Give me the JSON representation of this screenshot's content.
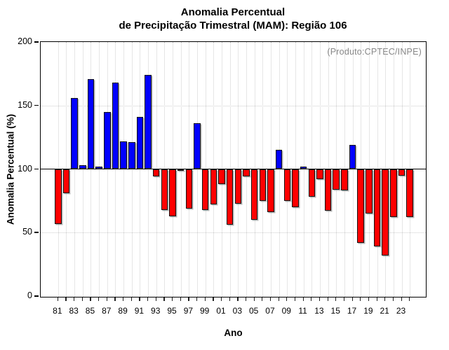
{
  "title": {
    "line1": "Anomalia Percentual",
    "line2": "de Precipitação Trimestral (MAM): Região 106"
  },
  "annotation": {
    "produto": "(Produto:CPTEC/INPE)",
    "color": "#878787"
  },
  "axes": {
    "ylabel": "Anomalia Percentual (%)",
    "xlabel": "Ano",
    "y_ticks": [
      0,
      50,
      100,
      150,
      200
    ],
    "y_gridlines": [
      50,
      150
    ],
    "x_label_every": 2
  },
  "colors": {
    "above_baseline": "#0000ff",
    "below_baseline": "#ff0000",
    "bar_outline": "#141414",
    "grid": "#cdcdcd"
  },
  "chart_data": {
    "type": "bar",
    "title": "Anomalia Percentual de Precipitação Trimestral (MAM): Região 106",
    "xlabel": "Ano",
    "ylabel": "Anomalia Percentual (%)",
    "ylim": [
      0,
      200
    ],
    "baseline": 100,
    "grid": "dotted",
    "categories": [
      "81",
      "82",
      "83",
      "84",
      "85",
      "86",
      "87",
      "88",
      "89",
      "90",
      "91",
      "92",
      "93",
      "94",
      "95",
      "96",
      "97",
      "98",
      "99",
      "00",
      "01",
      "02",
      "03",
      "04",
      "05",
      "06",
      "07",
      "08",
      "09",
      "10",
      "11",
      "12",
      "13",
      "14",
      "15",
      "16",
      "17",
      "18",
      "19",
      "20",
      "21",
      "22",
      "23",
      "24"
    ],
    "values": [
      57,
      81,
      156,
      103,
      171,
      102,
      145,
      168,
      122,
      121,
      141,
      174,
      94,
      68,
      63,
      99,
      69,
      136,
      68,
      72,
      88,
      56,
      73,
      94,
      60,
      75,
      66,
      115,
      75,
      70,
      102,
      78,
      92,
      67,
      84,
      83,
      119,
      42,
      65,
      39,
      32,
      62,
      95,
      62
    ]
  }
}
